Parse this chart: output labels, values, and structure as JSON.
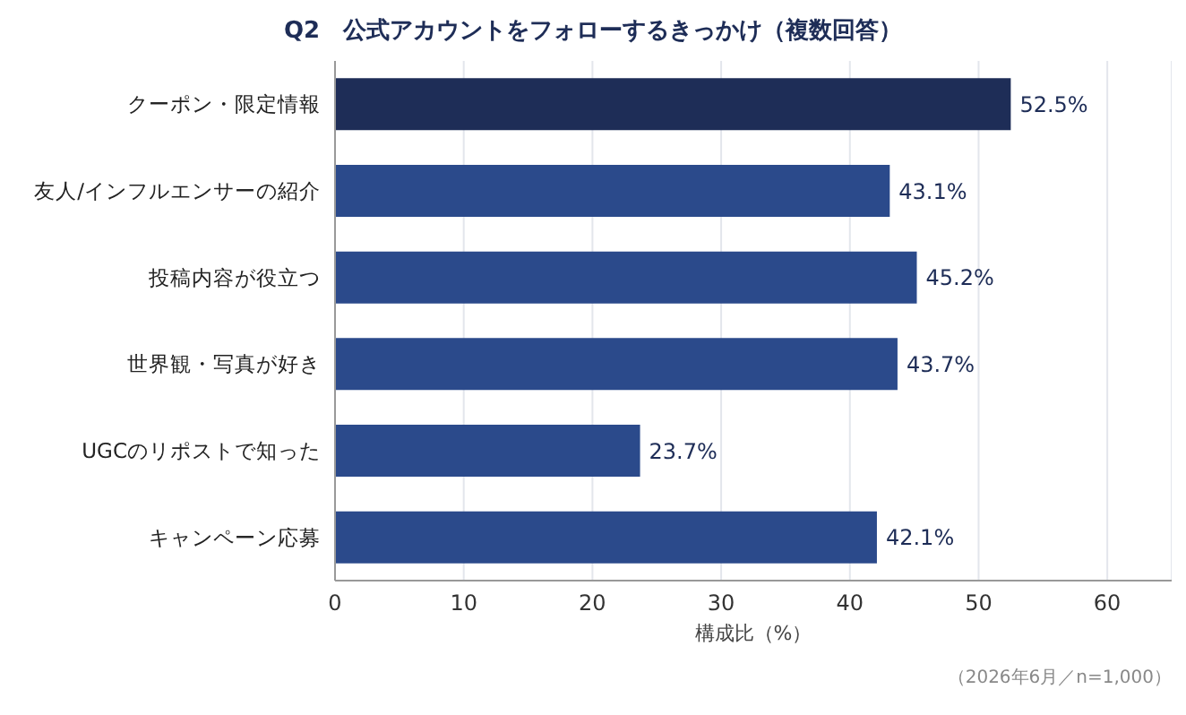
{
  "chart_data": {
    "type": "bar",
    "orientation": "horizontal",
    "title": "Q2　公式アカウントをフォローするきっかけ（複数回答）",
    "xlabel": "構成比（%）",
    "categories": [
      "クーポン・限定情報",
      "友人/インフルエンサーの紹介",
      "投稿内容が役立つ",
      "世界観・写真が好き",
      "UGCのリポストで知った",
      "キャンペーン応募"
    ],
    "values": [
      52.5,
      43.1,
      45.2,
      43.7,
      23.7,
      42.1
    ],
    "colors": [
      "#1e2d57",
      "#2b4a8b",
      "#2b4a8b",
      "#2b4a8b",
      "#2b4a8b",
      "#2b4a8b"
    ],
    "value_labels": [
      "52.5%",
      "43.1%",
      "45.2%",
      "43.7%",
      "23.7%",
      "42.1%"
    ],
    "xlim": [
      0,
      65
    ],
    "xticks": [
      0,
      10,
      20,
      30,
      40,
      50,
      60
    ],
    "grid": "x",
    "annotations": [
      "（2026年6月／n=1,000）"
    ]
  }
}
